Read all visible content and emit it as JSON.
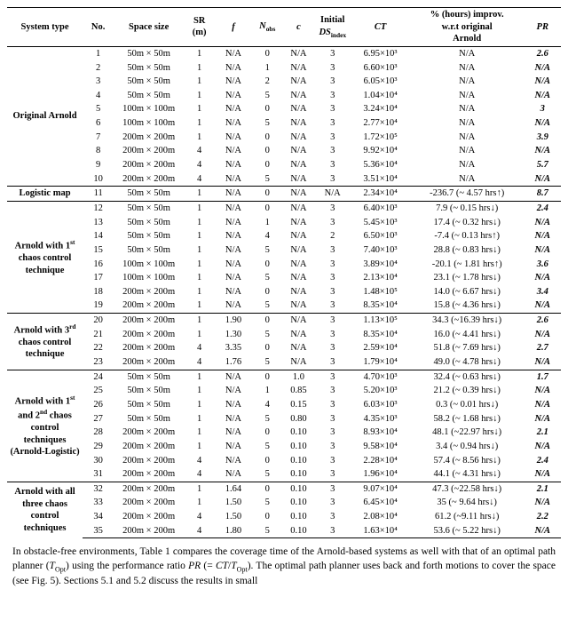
{
  "header": {
    "system": "System type",
    "no": "No.",
    "space": "Space size",
    "sr": "SR (m)",
    "f": "f",
    "nobs": "N",
    "nobs_sub": "obs",
    "c": "c",
    "ds": "Initial DS",
    "ds_sub": "index",
    "ct": "CT",
    "improv1": "% (hours) improv.",
    "improv2": "w.r.t original",
    "improv3": "Arnold",
    "pr": "PR"
  },
  "groups": [
    {
      "label": "Original Arnold",
      "rows": [
        {
          "no": "1",
          "space": "50m × 50m",
          "sr": "1",
          "f": "N/A",
          "nobs": "0",
          "c": "N/A",
          "ds": "3",
          "ct": "6.95×10³",
          "improv": "N/A",
          "pr": "2.6"
        },
        {
          "no": "2",
          "space": "50m × 50m",
          "sr": "1",
          "f": "N/A",
          "nobs": "1",
          "c": "N/A",
          "ds": "3",
          "ct": "6.60×10³",
          "improv": "N/A",
          "pr": "N/A"
        },
        {
          "no": "3",
          "space": "50m × 50m",
          "sr": "1",
          "f": "N/A",
          "nobs": "2",
          "c": "N/A",
          "ds": "3",
          "ct": "6.05×10³",
          "improv": "N/A",
          "pr": "N/A"
        },
        {
          "no": "4",
          "space": "50m × 50m",
          "sr": "1",
          "f": "N/A",
          "nobs": "5",
          "c": "N/A",
          "ds": "3",
          "ct": "1.04×10⁴",
          "improv": "N/A",
          "pr": "N/A"
        },
        {
          "no": "5",
          "space": "100m × 100m",
          "sr": "1",
          "f": "N/A",
          "nobs": "0",
          "c": "N/A",
          "ds": "3",
          "ct": "3.24×10⁴",
          "improv": "N/A",
          "pr": "3"
        },
        {
          "no": "6",
          "space": "100m × 100m",
          "sr": "1",
          "f": "N/A",
          "nobs": "5",
          "c": "N/A",
          "ds": "3",
          "ct": "2.77×10⁴",
          "improv": "N/A",
          "pr": "N/A"
        },
        {
          "no": "7",
          "space": "200m × 200m",
          "sr": "1",
          "f": "N/A",
          "nobs": "0",
          "c": "N/A",
          "ds": "3",
          "ct": "1.72×10⁵",
          "improv": "N/A",
          "pr": "3.9"
        },
        {
          "no": "8",
          "space": "200m × 200m",
          "sr": "4",
          "f": "N/A",
          "nobs": "0",
          "c": "N/A",
          "ds": "3",
          "ct": "9.92×10⁴",
          "improv": "N/A",
          "pr": "N/A"
        },
        {
          "no": "9",
          "space": "200m × 200m",
          "sr": "4",
          "f": "N/A",
          "nobs": "0",
          "c": "N/A",
          "ds": "3",
          "ct": "5.36×10⁴",
          "improv": "N/A",
          "pr": "5.7"
        },
        {
          "no": "10",
          "space": "200m × 200m",
          "sr": "4",
          "f": "N/A",
          "nobs": "5",
          "c": "N/A",
          "ds": "3",
          "ct": "3.51×10⁴",
          "improv": "N/A",
          "pr": "N/A"
        }
      ]
    },
    {
      "label": "Logistic map",
      "rows": [
        {
          "no": "11",
          "space": "50m × 50m",
          "sr": "1",
          "f": "N/A",
          "nobs": "0",
          "c": "N/A",
          "ds": "N/A",
          "ct": "2.34×10⁴",
          "improv": "-236.7 (~ 4.57 hrs↑)",
          "pr": "8.7"
        }
      ]
    },
    {
      "label_html": "Arnold with 1<sup>st</sup> chaos control technique",
      "rows": [
        {
          "no": "12",
          "space": "50m × 50m",
          "sr": "1",
          "f": "N/A",
          "nobs": "0",
          "c": "N/A",
          "ds": "3",
          "ct": "6.40×10³",
          "improv": "7.9 (~ 0.15 hrs↓)",
          "pr": "2.4"
        },
        {
          "no": "13",
          "space": "50m × 50m",
          "sr": "1",
          "f": "N/A",
          "nobs": "1",
          "c": "N/A",
          "ds": "3",
          "ct": "5.45×10³",
          "improv": "17.4 (~ 0.32 hrs↓)",
          "pr": "N/A"
        },
        {
          "no": "14",
          "space": "50m × 50m",
          "sr": "1",
          "f": "N/A",
          "nobs": "4",
          "c": "N/A",
          "ds": "2",
          "ct": "6.50×10³",
          "improv": "-7.4 (~ 0.13 hrs↑)",
          "pr": "N/A"
        },
        {
          "no": "15",
          "space": "50m × 50m",
          "sr": "1",
          "f": "N/A",
          "nobs": "5",
          "c": "N/A",
          "ds": "3",
          "ct": "7.40×10³",
          "improv": "28.8 (~ 0.83 hrs↓)",
          "pr": "N/A"
        },
        {
          "no": "16",
          "space": "100m × 100m",
          "sr": "1",
          "f": "N/A",
          "nobs": "0",
          "c": "N/A",
          "ds": "3",
          "ct": "3.89×10⁴",
          "improv": "-20.1 (~ 1.81 hrs↑)",
          "pr": "3.6"
        },
        {
          "no": "17",
          "space": "100m × 100m",
          "sr": "1",
          "f": "N/A",
          "nobs": "5",
          "c": "N/A",
          "ds": "3",
          "ct": "2.13×10⁴",
          "improv": "23.1 (~ 1.78 hrs↓)",
          "pr": "N/A"
        },
        {
          "no": "18",
          "space": "200m × 200m",
          "sr": "1",
          "f": "N/A",
          "nobs": "0",
          "c": "N/A",
          "ds": "3",
          "ct": "1.48×10⁵",
          "improv": "14.0 (~ 6.67 hrs↓)",
          "pr": "3.4"
        },
        {
          "no": "19",
          "space": "200m × 200m",
          "sr": "1",
          "f": "N/A",
          "nobs": "5",
          "c": "N/A",
          "ds": "3",
          "ct": "8.35×10⁴",
          "improv": "15.8 (~ 4.36 hrs↓)",
          "pr": "N/A"
        }
      ]
    },
    {
      "label_html": "Arnold with 3<sup>rd</sup> chaos control technique",
      "rows": [
        {
          "no": "20",
          "space": "200m × 200m",
          "sr": "1",
          "f": "1.90",
          "nobs": "0",
          "c": "N/A",
          "ds": "3",
          "ct": "1.13×10⁵",
          "improv": "34.3 (~16.39 hrs↓)",
          "pr": "2.6"
        },
        {
          "no": "21",
          "space": "200m × 200m",
          "sr": "1",
          "f": "1.30",
          "nobs": "5",
          "c": "N/A",
          "ds": "3",
          "ct": "8.35×10⁴",
          "improv": "16.0 (~ 4.41 hrs↓)",
          "pr": "N/A"
        },
        {
          "no": "22",
          "space": "200m × 200m",
          "sr": "4",
          "f": "3.35",
          "nobs": "0",
          "c": "N/A",
          "ds": "3",
          "ct": "2.59×10⁴",
          "improv": "51.8 (~ 7.69 hrs↓)",
          "pr": "2.7"
        },
        {
          "no": "23",
          "space": "200m × 200m",
          "sr": "4",
          "f": "1.76",
          "nobs": "5",
          "c": "N/A",
          "ds": "3",
          "ct": "1.79×10⁴",
          "improv": "49.0 (~ 4.78 hrs↓)",
          "pr": "N/A"
        }
      ]
    },
    {
      "label_html": "Arnold with 1<sup>st</sup> and 2<sup>nd</sup> chaos control techniques (Arnold-Logistic)",
      "rows": [
        {
          "no": "24",
          "space": "50m × 50m",
          "sr": "1",
          "f": "N/A",
          "nobs": "0",
          "c": "1.0",
          "ds": "3",
          "ct": "4.70×10³",
          "improv": "32.4 (~ 0.63 hrs↓)",
          "pr": "1.7"
        },
        {
          "no": "25",
          "space": "50m × 50m",
          "sr": "1",
          "f": "N/A",
          "nobs": "1",
          "c": "0.85",
          "ds": "3",
          "ct": "5.20×10³",
          "improv": "21.2 (~ 0.39 hrs↓)",
          "pr": "N/A"
        },
        {
          "no": "26",
          "space": "50m × 50m",
          "sr": "1",
          "f": "N/A",
          "nobs": "4",
          "c": "0.15",
          "ds": "3",
          "ct": "6.03×10³",
          "improv": "0.3 (~ 0.01 hrs↓)",
          "pr": "N/A"
        },
        {
          "no": "27",
          "space": "50m × 50m",
          "sr": "1",
          "f": "N/A",
          "nobs": "5",
          "c": "0.80",
          "ds": "3",
          "ct": "4.35×10³",
          "improv": "58.2 (~ 1.68 hrs↓)",
          "pr": "N/A"
        },
        {
          "no": "28",
          "space": "200m × 200m",
          "sr": "1",
          "f": "N/A",
          "nobs": "0",
          "c": "0.10",
          "ds": "3",
          "ct": "8.93×10⁴",
          "improv": "48.1 (~22.97 hrs↓)",
          "pr": "2.1"
        },
        {
          "no": "29",
          "space": "200m × 200m",
          "sr": "1",
          "f": "N/A",
          "nobs": "5",
          "c": "0.10",
          "ds": "3",
          "ct": "9.58×10⁴",
          "improv": "3.4 (~ 0.94 hrs↓)",
          "pr": "N/A"
        },
        {
          "no": "30",
          "space": "200m × 200m",
          "sr": "4",
          "f": "N/A",
          "nobs": "0",
          "c": "0.10",
          "ds": "3",
          "ct": "2.28×10⁴",
          "improv": "57.4 (~ 8.56 hrs↓)",
          "pr": "2.4"
        },
        {
          "no": "31",
          "space": "200m × 200m",
          "sr": "4",
          "f": "N/A",
          "nobs": "5",
          "c": "0.10",
          "ds": "3",
          "ct": "1.96×10⁴",
          "improv": "44.1 (~ 4.31 hrs↓)",
          "pr": "N/A"
        }
      ]
    },
    {
      "label": "Arnold with all three chaos control techniques",
      "rows": [
        {
          "no": "32",
          "space": "200m × 200m",
          "sr": "1",
          "f": "1.64",
          "nobs": "0",
          "c": "0.10",
          "ds": "3",
          "ct": "9.07×10⁴",
          "improv": "47.3 (~22.58 hrs↓)",
          "pr": "2.1"
        },
        {
          "no": "33",
          "space": "200m × 200m",
          "sr": "1",
          "f": "1.50",
          "nobs": "5",
          "c": "0.10",
          "ds": "3",
          "ct": "6.45×10⁴",
          "improv": "35 (~ 9.64 hrs↓)",
          "pr": "N/A"
        },
        {
          "no": "34",
          "space": "200m × 200m",
          "sr": "4",
          "f": "1.50",
          "nobs": "0",
          "c": "0.10",
          "ds": "3",
          "ct": "2.08×10⁴",
          "improv": "61.2 (~9.11 hrs↓)",
          "pr": "2.2"
        },
        {
          "no": "35",
          "space": "200m × 200m",
          "sr": "4",
          "f": "1.80",
          "nobs": "5",
          "c": "0.10",
          "ds": "3",
          "ct": "1.63×10⁴",
          "improv": "53.6 (~ 5.22 hrs↓)",
          "pr": "N/A"
        }
      ]
    }
  ],
  "caption": "In obstacle-free environments, Table 1 compares the coverage time of the Arnold-based systems as well with that of an optimal path planner (Tₒₚₜ) using the performance ratio PR (= CT/Tₒₚₜ). The optimal path planner uses back and forth motions to cover the space (see Fig. 5). Sections 5.1 and 5.2 discuss the results in small"
}
